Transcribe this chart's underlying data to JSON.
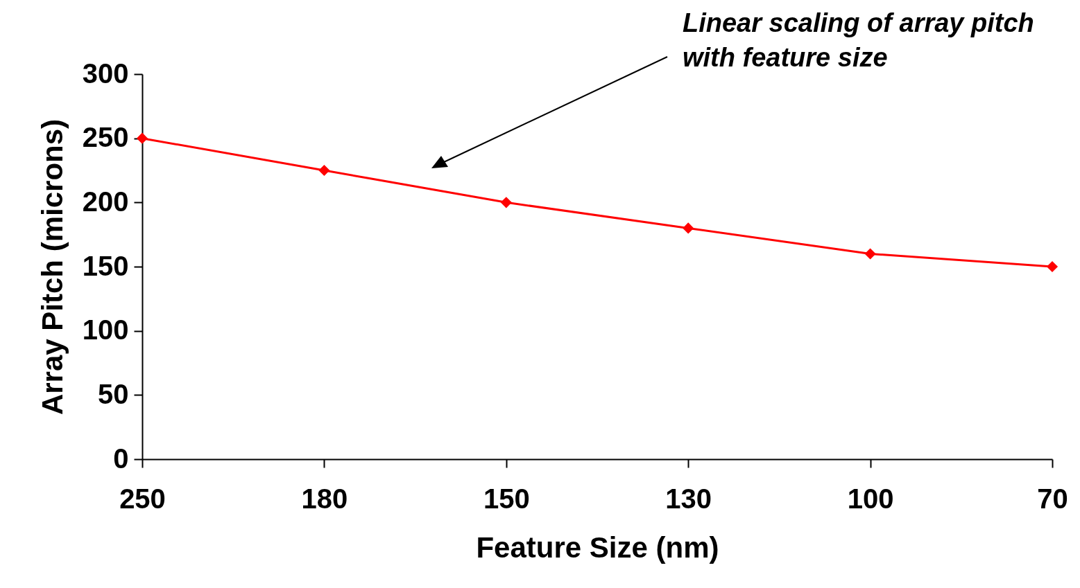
{
  "chart_data": {
    "type": "line",
    "xlabel": "Feature Size (nm)",
    "ylabel": "Array Pitch (microns)",
    "categories": [
      "250",
      "180",
      "150",
      "130",
      "100",
      "70"
    ],
    "series": [
      {
        "color": "#ff0000",
        "values": [
          250,
          225,
          200,
          180,
          160,
          150
        ]
      }
    ],
    "ylim": [
      0,
      300
    ],
    "yticks": [
      0,
      50,
      100,
      150,
      200,
      250,
      300
    ],
    "annotations": [
      "Linear scaling of array pitch with feature size"
    ],
    "marker": "diamond",
    "line_style": "solid",
    "grid": false,
    "legend": false
  }
}
